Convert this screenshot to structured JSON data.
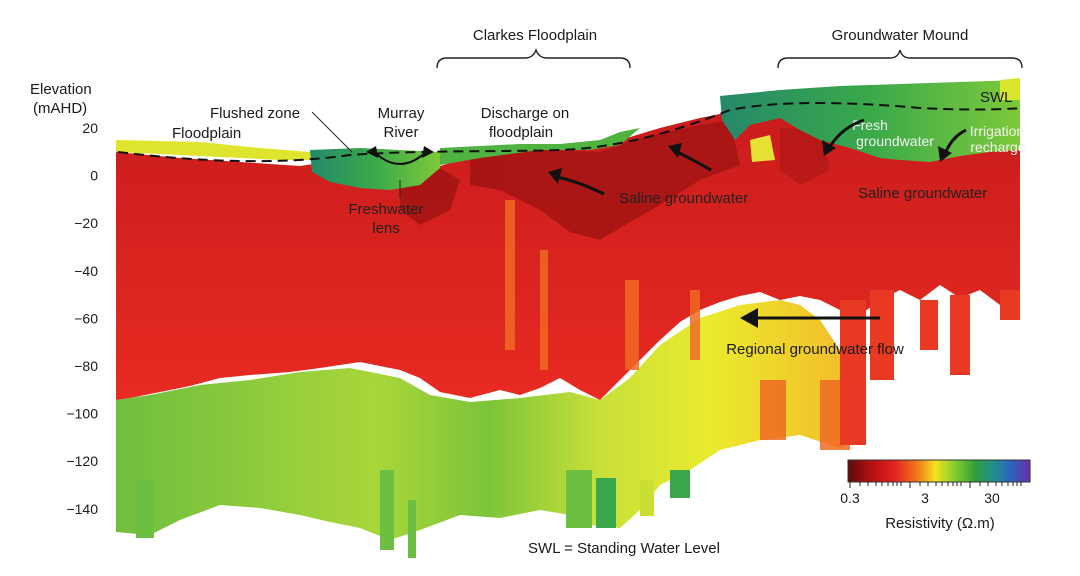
{
  "axis": {
    "ylabel_line1": "Elevation",
    "ylabel_line2": "(mAHD)",
    "yticks": [
      "20",
      "0",
      "−20",
      "−40",
      "−60",
      "−80",
      "−100",
      "−120",
      "−140"
    ]
  },
  "regions": {
    "clarkes_floodplain": "Clarkes Floodplain",
    "groundwater_mound": "Groundwater Mound"
  },
  "annotations": {
    "floodplain": "Floodplain",
    "flushed_zone": "Flushed zone",
    "murray_river_1": "Murray",
    "murray_river_2": "River",
    "discharge_1": "Discharge on",
    "discharge_2": "floodplain",
    "freshwater_lens_1": "Freshwater",
    "freshwater_lens_2": "lens",
    "saline_groundwater_center": "Saline groundwater",
    "saline_groundwater_right": "Saline groundwater",
    "fresh_groundwater_1": "Fresh",
    "fresh_groundwater_2": "groundwater",
    "irrigation_recharge_1": "Irrigation",
    "irrigation_recharge_2": "recharge",
    "swl": "SWL",
    "regional_flow": "Regional groundwater flow",
    "swl_definition": "SWL = Standing Water Level"
  },
  "colorbar": {
    "tick_labels": [
      "0.3",
      "3",
      "30"
    ],
    "title": "Resistivity (Ω.m)",
    "colors": [
      "#5a0a0a",
      "#b01010",
      "#e32020",
      "#f0781c",
      "#f5e21e",
      "#8ccf2e",
      "#2f9f3a",
      "#1f8f8f",
      "#2f5fbf",
      "#6a2fa8"
    ]
  },
  "colors": {
    "deep_red": "#a81818",
    "red": "#e32626",
    "orange": "#ef5a1e",
    "yellow_green": "#c9de2c",
    "yellow": "#f2ef28",
    "green": "#7cc43a",
    "teal_green": "#2f9a4f",
    "dark_teal": "#1f7a5a"
  }
}
